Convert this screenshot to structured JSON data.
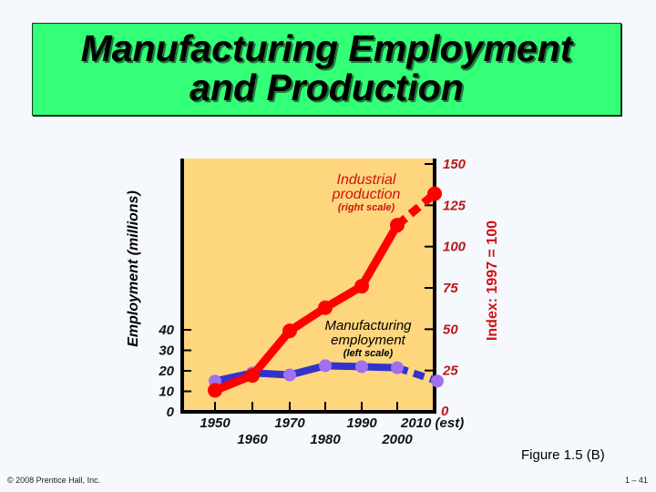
{
  "slide": {
    "title_line1": "Manufacturing Employment",
    "title_line2": "and Production",
    "figure_label": "Figure 1.5 (B)",
    "copyright": "© 2008 Prentice Hall, Inc.",
    "slide_number": "1 – 41"
  },
  "colors": {
    "background": "#F5F8FC",
    "title_box": "#33FF77",
    "plot_fill": "#FDD67E",
    "production_line": "#FF0000",
    "employment_line": "#3333CC",
    "employment_marker": "#A070F0",
    "right_axis_text": "#B81818"
  },
  "chart_data": {
    "type": "line",
    "title": "Manufacturing Employment and Production",
    "xlabel": "",
    "ylabel_left": "Employment (millions)",
    "ylabel_right": "Index: 1997 = 100",
    "x": [
      1950,
      1960,
      1970,
      1980,
      1990,
      2000,
      2010
    ],
    "x_tick_labels": [
      "1950",
      "1960",
      "1970",
      "1980",
      "1990",
      "2000",
      "2010 (est)"
    ],
    "left_axis": {
      "ticks": [
        0,
        10,
        20,
        30,
        40
      ],
      "range": [
        0,
        40
      ]
    },
    "right_axis": {
      "ticks": [
        0,
        25,
        50,
        75,
        100,
        125,
        150
      ],
      "range": [
        0,
        150
      ]
    },
    "grid": false,
    "series": [
      {
        "name": "Industrial production",
        "sublabel": "(right scale)",
        "axis": "right",
        "values": [
          13,
          22,
          49,
          63,
          76,
          113,
          132
        ],
        "dashed_last_segment": true
      },
      {
        "name": "Manufacturing employment",
        "sublabel": "(left scale)",
        "axis": "left",
        "values": [
          15,
          19,
          18,
          22.5,
          22,
          21.5,
          15
        ],
        "dashed_last_segment": true
      }
    ]
  }
}
